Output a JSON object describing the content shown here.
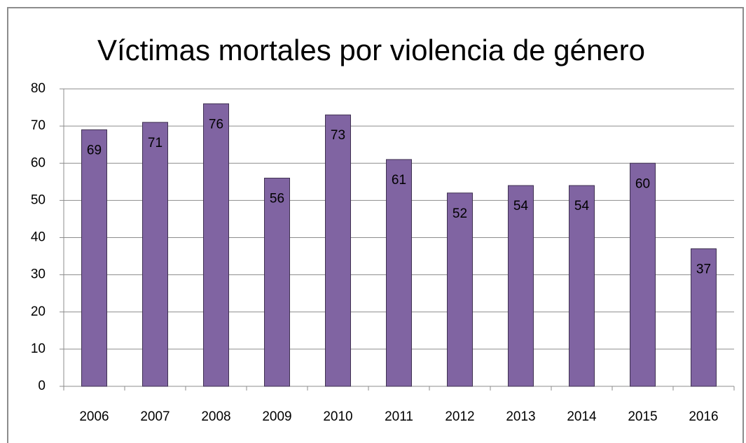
{
  "chart_data": {
    "type": "bar",
    "title": "Víctimas mortales por violencia de género",
    "categories": [
      "2006",
      "2007",
      "2008",
      "2009",
      "2010",
      "2011",
      "2012",
      "2013",
      "2014",
      "2015",
      "2016"
    ],
    "values": [
      69,
      71,
      76,
      56,
      73,
      61,
      52,
      54,
      54,
      60,
      37
    ],
    "color": "#8064a2",
    "ylim": [
      0,
      80
    ],
    "yticks": [
      0,
      10,
      20,
      30,
      40,
      50,
      60,
      70,
      80
    ],
    "grid": true
  }
}
